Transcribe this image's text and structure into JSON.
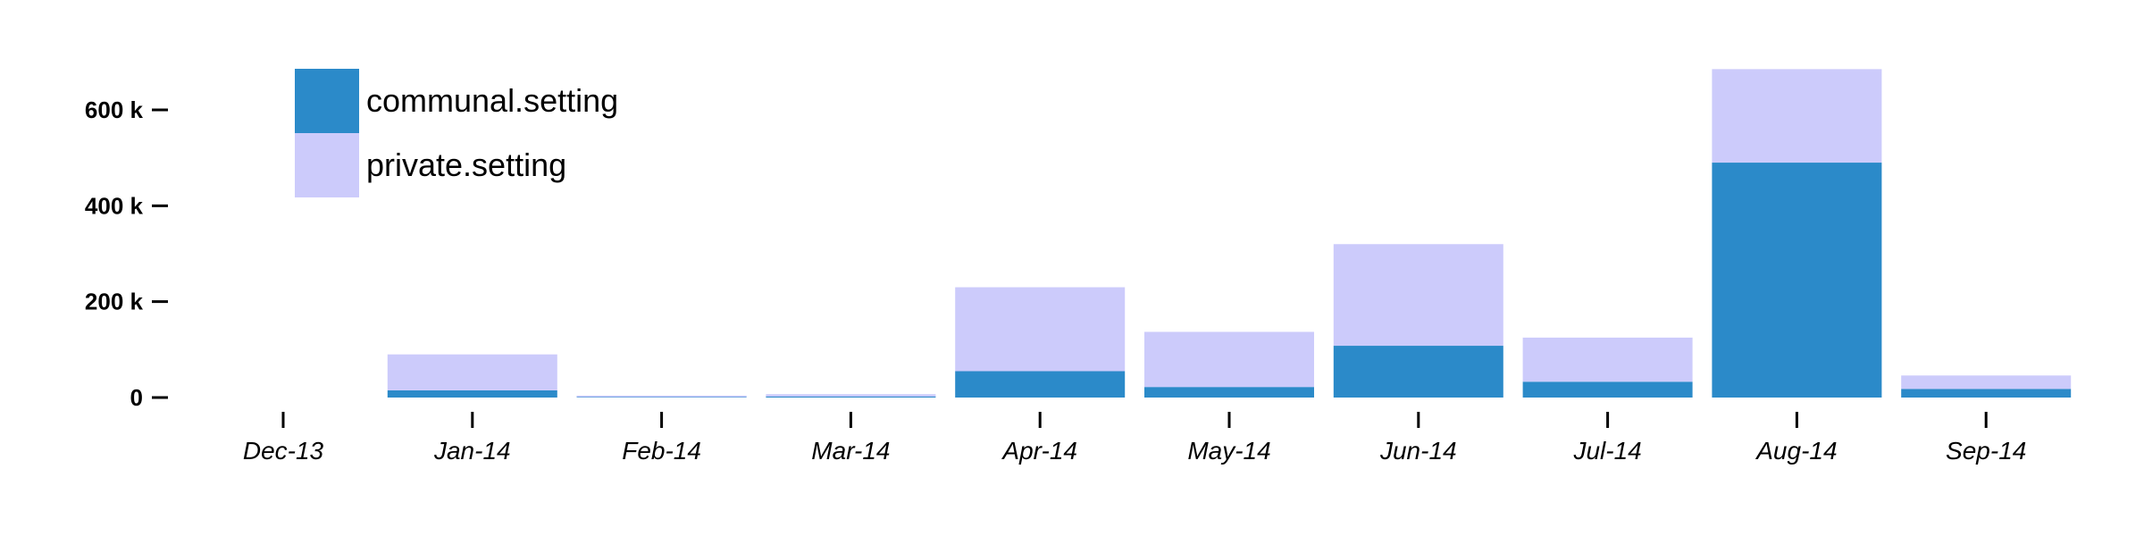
{
  "chart_data": {
    "type": "bar",
    "stacked": true,
    "categories": [
      "Dec-13",
      "Jan-14",
      "Feb-14",
      "Mar-14",
      "Apr-14",
      "May-14",
      "Jun-14",
      "Jul-14",
      "Aug-14",
      "Sep-14"
    ],
    "series": [
      {
        "name": "communal.setting",
        "color": "#2b8ac9",
        "values": [
          0,
          15000,
          1000,
          2000,
          55000,
          22000,
          108000,
          33000,
          490000,
          18000
        ]
      },
      {
        "name": "private.setting",
        "color": "#cccbfb",
        "values": [
          0,
          75000,
          3000,
          5000,
          175000,
          115000,
          212000,
          92000,
          195000,
          28000
        ]
      }
    ],
    "yticks": [
      0,
      200000,
      400000,
      600000
    ],
    "ytick_labels": [
      "0",
      "200 k",
      "400 k",
      "600 k"
    ],
    "ylim": [
      0,
      700000
    ],
    "grid": false,
    "legend": "top-left"
  }
}
